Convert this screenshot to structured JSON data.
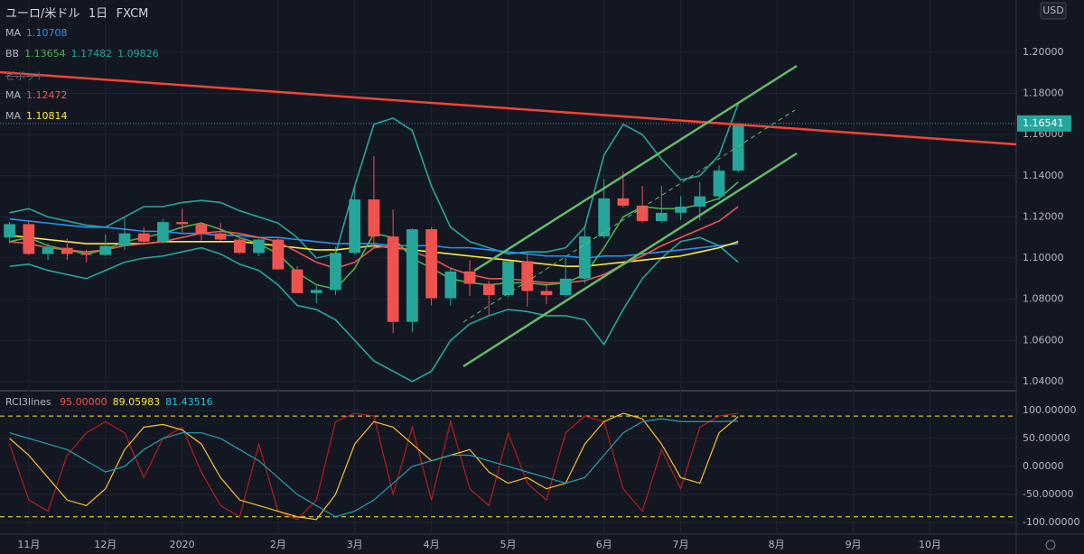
{
  "header": {
    "symbol": "ユーロ/米ドル",
    "interval": "1日",
    "source": "FXCM",
    "currency": "USD"
  },
  "legend": [
    {
      "name": "MA",
      "color": "#2196f3",
      "values": [
        1.10708
      ]
    },
    {
      "name": "BB",
      "colors": [
        "#4caf50",
        "#26a69a",
        "#26a69a"
      ],
      "values": [
        1.13654,
        1.17482,
        1.09826
      ]
    },
    {
      "name": "ピボット",
      "color": "#5d606b",
      "values": []
    },
    {
      "name": "MA",
      "color": "#ef5350",
      "values": [
        1.12472
      ]
    },
    {
      "name": "MA",
      "color": "#ffeb3b",
      "values": [
        1.10814
      ]
    }
  ],
  "last_price": {
    "value": 1.16541,
    "label": "1.16541"
  },
  "chart_data": [
    {
      "type": "candlestick",
      "ylim": [
        1.036,
        1.2254
      ],
      "yticks": [
        {
          "value": 1.04,
          "label": "1.04000"
        },
        {
          "value": 1.06,
          "label": "1.06000"
        },
        {
          "value": 1.08,
          "label": "1.08000"
        },
        {
          "value": 1.1,
          "label": "1.10000"
        },
        {
          "value": 1.12,
          "label": "1.12000"
        },
        {
          "value": 1.14,
          "label": "1.14000"
        },
        {
          "value": 1.16,
          "label": "1.16000"
        },
        {
          "value": 1.18,
          "label": "1.18000"
        },
        {
          "value": 1.2,
          "label": "1.20000"
        }
      ],
      "grid": true,
      "up_color": "#26a69a",
      "down_color": "#ef5350",
      "categories": [
        null,
        "11月",
        null,
        null,
        null,
        "12月",
        null,
        null,
        null,
        "2020",
        null,
        null,
        null,
        null,
        "2月",
        null,
        null,
        null,
        "3月",
        null,
        null,
        null,
        "4月",
        null,
        null,
        null,
        "5月",
        null,
        null,
        null,
        null,
        "6月",
        null,
        null,
        null,
        "7月",
        null,
        null,
        null,
        null,
        "8月",
        null,
        null,
        null,
        "9月",
        null,
        null,
        null,
        "10月",
        null,
        null,
        null,
        null
      ],
      "open": [
        1.11,
        1.1165,
        1.102,
        1.105,
        1.102,
        1.1015,
        1.106,
        1.112,
        1.108,
        1.1175,
        1.1165,
        1.112,
        1.109,
        1.1025,
        1.109,
        1.0945,
        1.083,
        1.0845,
        1.1025,
        1.1285,
        1.1105,
        1.069,
        1.114,
        1.0805,
        1.0935,
        1.0875,
        1.082,
        1.0985,
        1.084,
        1.082,
        1.09,
        1.1105,
        1.129,
        1.1255,
        1.118,
        1.122,
        1.125,
        1.13,
        1.1425,
        null,
        null,
        null,
        null,
        null,
        null,
        null,
        null,
        null,
        null,
        null,
        null,
        null,
        null
      ],
      "high": [
        1.1175,
        1.118,
        1.107,
        1.1095,
        1.104,
        1.1115,
        1.12,
        1.115,
        1.119,
        1.124,
        1.1175,
        1.117,
        1.11,
        1.1095,
        1.1095,
        1.096,
        1.0865,
        1.1055,
        1.1355,
        1.1495,
        1.1235,
        1.1145,
        1.115,
        1.095,
        1.099,
        1.089,
        1.0975,
        1.102,
        1.0875,
        1.101,
        1.115,
        1.1385,
        1.142,
        1.135,
        1.135,
        1.13,
        1.137,
        1.145,
        1.1655,
        null,
        null,
        null,
        null,
        null,
        null,
        null,
        null,
        null,
        null,
        null,
        null,
        null,
        null
      ],
      "low": [
        1.107,
        1.1015,
        1.099,
        1.099,
        1.098,
        1.101,
        1.104,
        1.1065,
        1.107,
        1.1125,
        1.1085,
        1.1085,
        1.102,
        1.101,
        1.0945,
        1.083,
        1.078,
        1.082,
        1.1015,
        1.105,
        1.0635,
        1.064,
        1.077,
        1.077,
        1.0815,
        1.0725,
        1.081,
        1.0765,
        1.0775,
        1.081,
        1.0875,
        1.1095,
        1.1245,
        1.117,
        1.117,
        1.1185,
        1.1185,
        1.128,
        1.1415,
        null,
        null,
        null,
        null,
        null,
        null,
        null,
        null,
        null,
        null,
        null,
        null,
        null,
        null
      ],
      "close": [
        1.1165,
        1.102,
        1.105,
        1.102,
        1.1015,
        1.106,
        1.112,
        1.108,
        1.1175,
        1.1165,
        1.112,
        1.109,
        1.1025,
        1.109,
        1.0945,
        1.083,
        1.0845,
        1.1025,
        1.1285,
        1.1105,
        1.069,
        1.114,
        1.0805,
        1.0935,
        1.0875,
        1.082,
        1.0985,
        1.084,
        1.082,
        1.09,
        1.1105,
        1.129,
        1.1255,
        1.118,
        1.122,
        1.125,
        1.13,
        1.1425,
        1.1654,
        null,
        null,
        null,
        null,
        null,
        null,
        null,
        null,
        null,
        null,
        null,
        null,
        null,
        null
      ],
      "series": [
        {
          "color": "#26a69a",
          "values": [
            1.122,
            1.124,
            1.12,
            1.118,
            1.116,
            1.115,
            1.12,
            1.125,
            1.125,
            1.127,
            1.128,
            1.127,
            1.123,
            1.12,
            1.117,
            1.11,
            1.1,
            1.102,
            1.135,
            1.165,
            1.168,
            1.162,
            1.135,
            1.115,
            1.108,
            1.105,
            1.102,
            1.103,
            1.103,
            1.105,
            1.115,
            1.15,
            1.165,
            1.16,
            1.148,
            1.138,
            1.14,
            1.15,
            1.175,
            null,
            null,
            null,
            null,
            null,
            null,
            null,
            null,
            null,
            null,
            null,
            null,
            null,
            null
          ]
        },
        {
          "color": "#26a69a",
          "values": [
            1.096,
            1.097,
            1.094,
            1.092,
            1.09,
            1.094,
            1.098,
            1.1,
            1.101,
            1.103,
            1.105,
            1.102,
            1.097,
            1.094,
            1.087,
            1.077,
            1.075,
            1.07,
            1.06,
            1.05,
            1.045,
            1.04,
            1.045,
            1.06,
            1.068,
            1.072,
            1.075,
            1.074,
            1.072,
            1.072,
            1.07,
            1.058,
            1.075,
            1.09,
            1.1,
            1.108,
            1.11,
            1.106,
            1.098,
            null,
            null,
            null,
            null,
            null,
            null,
            null,
            null,
            null,
            null,
            null,
            null,
            null,
            null
          ]
        },
        {
          "color": "#2196f3",
          "values": [
            1.119,
            1.118,
            1.117,
            1.116,
            1.115,
            1.115,
            1.114,
            1.113,
            1.113,
            1.112,
            1.112,
            1.111,
            1.111,
            1.11,
            1.11,
            1.109,
            1.108,
            1.107,
            1.107,
            1.107,
            1.106,
            1.106,
            1.106,
            1.105,
            1.105,
            1.104,
            1.103,
            1.102,
            1.101,
            1.101,
            1.1,
            1.101,
            1.101,
            1.102,
            1.103,
            1.104,
            1.105,
            1.106,
            1.107,
            null,
            null,
            null,
            null,
            null,
            null,
            null,
            null,
            null,
            null,
            null,
            null,
            null,
            null
          ]
        },
        {
          "color": "#ffeb3b",
          "values": [
            1.111,
            1.11,
            1.109,
            1.108,
            1.107,
            1.107,
            1.107,
            1.107,
            1.108,
            1.108,
            1.108,
            1.108,
            1.108,
            1.107,
            1.106,
            1.105,
            1.104,
            1.104,
            1.105,
            1.106,
            1.105,
            1.104,
            1.103,
            1.102,
            1.101,
            1.1,
            1.099,
            1.098,
            1.097,
            1.096,
            1.096,
            1.097,
            1.098,
            1.099,
            1.1,
            1.101,
            1.103,
            1.105,
            1.108,
            null,
            null,
            null,
            null,
            null,
            null,
            null,
            null,
            null,
            null,
            null,
            null,
            null,
            null
          ]
        },
        {
          "color": "#ef5350",
          "values": [
            1.108,
            1.107,
            1.105,
            1.104,
            1.103,
            1.104,
            1.106,
            1.107,
            1.108,
            1.11,
            1.112,
            1.113,
            1.112,
            1.11,
            1.108,
            1.103,
            1.098,
            1.095,
            1.098,
            1.105,
            1.106,
            1.103,
            1.1,
            1.095,
            1.092,
            1.09,
            1.09,
            1.089,
            1.088,
            1.088,
            1.089,
            1.092,
            1.097,
            1.101,
            1.106,
            1.11,
            1.114,
            1.118,
            1.125,
            null,
            null,
            null,
            null,
            null,
            null,
            null,
            null,
            null,
            null,
            null,
            null,
            null,
            null
          ]
        },
        {
          "color": "#4caf50",
          "values": [
            1.108,
            1.11,
            1.106,
            1.104,
            1.102,
            1.104,
            1.108,
            1.11,
            1.112,
            1.115,
            1.117,
            1.114,
            1.11,
            1.107,
            1.102,
            1.093,
            1.087,
            1.085,
            1.095,
            1.112,
            1.11,
            1.1,
            1.095,
            1.09,
            1.088,
            1.087,
            1.088,
            1.088,
            1.087,
            1.088,
            1.092,
            1.105,
            1.12,
            1.125,
            1.124,
            1.124,
            1.126,
            1.129,
            1.137,
            null,
            null,
            null,
            null,
            null,
            null,
            null,
            null,
            null,
            null,
            null,
            null,
            null,
            null
          ]
        }
      ]
    },
    {
      "type": "line",
      "title": "RCI3lines",
      "ylim": [
        -121,
        132
      ],
      "yticks": [
        {
          "value": 100,
          "label": "100.00000"
        },
        {
          "value": 50,
          "label": "50.00000"
        },
        {
          "value": 0,
          "label": "0.00000"
        },
        {
          "value": -50,
          "label": "-50.00000"
        },
        {
          "value": -100,
          "label": "-100.00000"
        }
      ],
      "levels": [
        90,
        -90
      ],
      "level_color": "#ffeb3b",
      "legend_values": [
        {
          "value": 95,
          "label": "95.00000",
          "color": "#ef5350"
        },
        {
          "value": 89.05983,
          "label": "89.05983",
          "color": "#ffeb3b"
        },
        {
          "value": 81.43516,
          "label": "81.43516",
          "color": "#26c6da"
        }
      ],
      "series": [
        {
          "color": "#b71c1c",
          "values": [
            40,
            -60,
            -80,
            20,
            60,
            80,
            60,
            -20,
            50,
            70,
            -10,
            -70,
            -90,
            40,
            -80,
            -95,
            -60,
            80,
            95,
            90,
            -50,
            70,
            -60,
            80,
            -40,
            -70,
            60,
            -30,
            -60,
            60,
            90,
            80,
            -40,
            -80,
            30,
            -40,
            70,
            90,
            95,
            null,
            null,
            null,
            null,
            null,
            null,
            null,
            null,
            null,
            null,
            null,
            null,
            null,
            null
          ]
        },
        {
          "color": "#fbc02d",
          "values": [
            50,
            20,
            -20,
            -60,
            -70,
            -40,
            30,
            70,
            75,
            65,
            40,
            -20,
            -60,
            -70,
            -80,
            -90,
            -95,
            -50,
            40,
            80,
            70,
            40,
            10,
            20,
            30,
            -10,
            -30,
            -20,
            -40,
            -30,
            40,
            80,
            95,
            85,
            40,
            -20,
            -30,
            60,
            89,
            null,
            null,
            null,
            null,
            null,
            null,
            null,
            null,
            null,
            null,
            null,
            null,
            null,
            null
          ]
        },
        {
          "color": "#26a0b0",
          "values": [
            60,
            50,
            40,
            30,
            10,
            -10,
            0,
            30,
            50,
            60,
            60,
            50,
            30,
            10,
            -20,
            -50,
            -70,
            -90,
            -80,
            -60,
            -30,
            0,
            10,
            20,
            20,
            10,
            0,
            -10,
            -20,
            -30,
            -20,
            20,
            60,
            80,
            85,
            80,
            80,
            80,
            81,
            null,
            null,
            null,
            null,
            null,
            null,
            null,
            null,
            null,
            null,
            null,
            null,
            null,
            null
          ]
        }
      ]
    }
  ]
}
